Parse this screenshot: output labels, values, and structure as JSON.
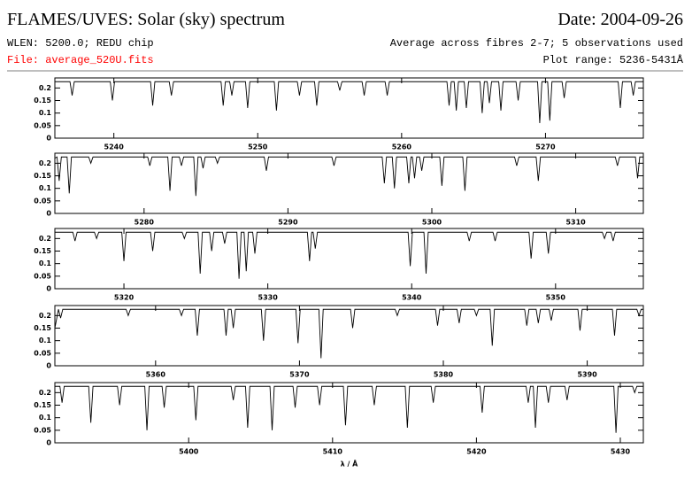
{
  "header": {
    "title": "FLAMES/UVES: Solar (sky) spectrum",
    "date": "Date: 2004-09-26",
    "wlen": "WLEN: 5200.0; REDU chip",
    "average": "Average across fibres 2-7; 5 observations used",
    "file": "File: average_520U.fits",
    "plot_range": "Plot range: 5236-5431Å"
  },
  "chart_data": [
    {
      "type": "line",
      "color": "#000000",
      "xlim": [
        5235.9,
        5276.8
      ],
      "ylim": [
        0,
        0.24
      ],
      "xticks": [
        5240,
        5250,
        5260,
        5270
      ],
      "yticks": [
        0,
        0.05,
        0.1,
        0.15,
        0.2
      ],
      "x": [
        5235.9,
        5236.95,
        5237.1,
        5237.25,
        5239.75,
        5239.9,
        5240.05,
        5242.55,
        5242.7,
        5242.85,
        5243.85,
        5244,
        5244.15,
        5247.45,
        5247.6,
        5247.75,
        5248.05,
        5248.2,
        5248.35,
        5249.15,
        5249.3,
        5249.45,
        5251.15,
        5251.3,
        5251.45,
        5252.75,
        5252.9,
        5253.05,
        5253.95,
        5254.1,
        5254.25,
        5255.55,
        5255.7,
        5255.85,
        5257.25,
        5257.4,
        5257.55,
        5258.85,
        5259,
        5259.15,
        5263.15,
        5263.3,
        5263.45,
        5263.65,
        5263.8,
        5263.95,
        5264.35,
        5264.5,
        5264.65,
        5265.45,
        5265.6,
        5265.75,
        5265.95,
        5266.1,
        5266.25,
        5266.75,
        5266.9,
        5267.05,
        5267.95,
        5268.1,
        5268.25,
        5269.45,
        5269.6,
        5269.75,
        5270.15,
        5270.3,
        5270.45,
        5271.15,
        5271.3,
        5271.45,
        5275.05,
        5275.2,
        5275.35,
        5275.95,
        5276.1,
        5276.25,
        5276.8
      ],
      "values": [
        0.225,
        0.225,
        0.17,
        0.225,
        0.225,
        0.15,
        0.225,
        0.225,
        0.13,
        0.225,
        0.225,
        0.17,
        0.225,
        0.225,
        0.13,
        0.225,
        0.225,
        0.17,
        0.225,
        0.225,
        0.12,
        0.225,
        0.225,
        0.11,
        0.225,
        0.225,
        0.17,
        0.225,
        0.225,
        0.13,
        0.225,
        0.225,
        0.19,
        0.225,
        0.225,
        0.17,
        0.225,
        0.225,
        0.17,
        0.225,
        0.225,
        0.13,
        0.225,
        0.225,
        0.11,
        0.225,
        0.225,
        0.12,
        0.225,
        0.225,
        0.1,
        0.225,
        0.225,
        0.14,
        0.225,
        0.225,
        0.11,
        0.225,
        0.225,
        0.15,
        0.225,
        0.225,
        0.06,
        0.225,
        0.225,
        0.07,
        0.225,
        0.225,
        0.16,
        0.225,
        0.225,
        0.12,
        0.225,
        0.225,
        0.17,
        0.225,
        0.225
      ]
    },
    {
      "type": "line",
      "color": "#000000",
      "xlim": [
        5273.8,
        5314.7
      ],
      "ylim": [
        0,
        0.24
      ],
      "xticks": [
        5280,
        5290,
        5300,
        5310
      ],
      "yticks": [
        0,
        0.05,
        0.1,
        0.15,
        0.2
      ],
      "x": [
        5273.8,
        5273.95,
        5274.1,
        5274.25,
        5274.65,
        5274.8,
        5274.95,
        5276.15,
        5276.3,
        5276.45,
        5280.25,
        5280.4,
        5280.55,
        5281.65,
        5281.8,
        5281.95,
        5282.45,
        5282.6,
        5282.75,
        5283.45,
        5283.6,
        5283.75,
        5283.95,
        5284.1,
        5284.25,
        5284.95,
        5285.1,
        5285.25,
        5288.35,
        5288.5,
        5288.65,
        5293.05,
        5293.2,
        5293.35,
        5296.55,
        5296.7,
        5296.85,
        5297.25,
        5297.4,
        5297.55,
        5298.25,
        5298.4,
        5298.55,
        5298.65,
        5298.8,
        5298.95,
        5299.15,
        5299.3,
        5299.45,
        5300.55,
        5300.7,
        5300.85,
        5302.15,
        5302.3,
        5302.45,
        5305.75,
        5305.9,
        5306.05,
        5307.25,
        5307.4,
        5307.55,
        5312.75,
        5312.9,
        5313.05,
        5314.15,
        5314.3,
        5314.45,
        5314.7
      ],
      "values": [
        0.22,
        0.225,
        0.13,
        0.225,
        0.225,
        0.08,
        0.225,
        0.225,
        0.2,
        0.225,
        0.225,
        0.19,
        0.225,
        0.225,
        0.09,
        0.225,
        0.225,
        0.19,
        0.225,
        0.225,
        0.07,
        0.225,
        0.225,
        0.18,
        0.225,
        0.225,
        0.2,
        0.225,
        0.225,
        0.17,
        0.225,
        0.225,
        0.19,
        0.225,
        0.225,
        0.12,
        0.225,
        0.225,
        0.1,
        0.225,
        0.225,
        0.12,
        0.225,
        0.225,
        0.14,
        0.225,
        0.225,
        0.17,
        0.225,
        0.225,
        0.11,
        0.225,
        0.225,
        0.09,
        0.225,
        0.225,
        0.19,
        0.225,
        0.225,
        0.13,
        0.225,
        0.225,
        0.19,
        0.225,
        0.225,
        0.14,
        0.225,
        0.225
      ]
    },
    {
      "type": "line",
      "color": "#000000",
      "xlim": [
        5315.2,
        5356.1
      ],
      "ylim": [
        0,
        0.24
      ],
      "xticks": [
        5320,
        5330,
        5340,
        5350
      ],
      "yticks": [
        0,
        0.05,
        0.1,
        0.15,
        0.2
      ],
      "x": [
        5315.2,
        5316.45,
        5316.6,
        5316.75,
        5317.95,
        5318.1,
        5318.25,
        5319.85,
        5320,
        5320.15,
        5321.85,
        5322,
        5322.15,
        5324.05,
        5324.2,
        5324.35,
        5325.15,
        5325.3,
        5325.45,
        5325.95,
        5326.1,
        5326.25,
        5326.85,
        5327,
        5327.15,
        5327.85,
        5328,
        5328.15,
        5328.35,
        5328.5,
        5328.65,
        5328.95,
        5329.1,
        5329.25,
        5332.75,
        5332.9,
        5333.05,
        5333.15,
        5333.3,
        5333.45,
        5339.75,
        5339.9,
        5340.05,
        5340.85,
        5341,
        5341.15,
        5343.85,
        5344,
        5344.15,
        5345.65,
        5345.8,
        5345.95,
        5348.15,
        5348.3,
        5348.45,
        5349.35,
        5349.5,
        5349.65,
        5353.25,
        5353.4,
        5353.55,
        5353.85,
        5354,
        5354.15,
        5356.1
      ],
      "values": [
        0.225,
        0.225,
        0.19,
        0.225,
        0.225,
        0.2,
        0.225,
        0.225,
        0.11,
        0.225,
        0.225,
        0.15,
        0.225,
        0.225,
        0.2,
        0.225,
        0.225,
        0.06,
        0.225,
        0.225,
        0.15,
        0.225,
        0.225,
        0.18,
        0.225,
        0.225,
        0.04,
        0.225,
        0.225,
        0.07,
        0.225,
        0.225,
        0.14,
        0.225,
        0.225,
        0.11,
        0.225,
        0.225,
        0.16,
        0.225,
        0.225,
        0.09,
        0.225,
        0.225,
        0.06,
        0.225,
        0.225,
        0.19,
        0.225,
        0.225,
        0.19,
        0.225,
        0.225,
        0.12,
        0.225,
        0.225,
        0.14,
        0.225,
        0.225,
        0.2,
        0.225,
        0.225,
        0.19,
        0.225,
        0.225
      ]
    },
    {
      "type": "line",
      "color": "#000000",
      "xlim": [
        5353,
        5393.9
      ],
      "ylim": [
        0,
        0.24
      ],
      "xticks": [
        5360,
        5370,
        5380,
        5390
      ],
      "yticks": [
        0,
        0.05,
        0.1,
        0.15,
        0.2
      ],
      "x": [
        5353,
        5353.25,
        5353.4,
        5353.55,
        5357.95,
        5358.1,
        5358.25,
        5361.65,
        5361.8,
        5361.95,
        5362.75,
        5362.9,
        5363.05,
        5364.75,
        5364.9,
        5365.05,
        5365.25,
        5365.4,
        5365.55,
        5367.35,
        5367.5,
        5367.65,
        5369.75,
        5369.9,
        5370.05,
        5371.35,
        5371.5,
        5371.65,
        5373.55,
        5373.7,
        5373.85,
        5376.65,
        5376.8,
        5376.95,
        5379.45,
        5379.6,
        5379.75,
        5380.95,
        5381.1,
        5381.25,
        5382.15,
        5382.3,
        5382.45,
        5383.25,
        5383.4,
        5383.55,
        5385.65,
        5385.8,
        5385.95,
        5386.45,
        5386.6,
        5386.75,
        5387.35,
        5387.5,
        5387.65,
        5389.35,
        5389.5,
        5389.65,
        5391.75,
        5391.9,
        5392.05,
        5393.45,
        5393.6,
        5393.75,
        5393.9
      ],
      "values": [
        0.15,
        0.225,
        0.19,
        0.225,
        0.225,
        0.2,
        0.225,
        0.225,
        0.2,
        0.225,
        0.225,
        0.12,
        0.225,
        0.225,
        0.12,
        0.225,
        0.225,
        0.15,
        0.225,
        0.225,
        0.1,
        0.225,
        0.225,
        0.09,
        0.225,
        0.225,
        0.03,
        0.225,
        0.225,
        0.15,
        0.225,
        0.225,
        0.2,
        0.225,
        0.225,
        0.16,
        0.225,
        0.225,
        0.17,
        0.225,
        0.225,
        0.2,
        0.225,
        0.225,
        0.08,
        0.225,
        0.225,
        0.16,
        0.225,
        0.225,
        0.17,
        0.225,
        0.225,
        0.18,
        0.225,
        0.225,
        0.14,
        0.225,
        0.225,
        0.12,
        0.225,
        0.225,
        0.2,
        0.225,
        0.225
      ]
    },
    {
      "type": "line",
      "color": "#000000",
      "xlim": [
        5390.7,
        5431.6
      ],
      "ylim": [
        0,
        0.24
      ],
      "xticks": [
        5400,
        5410,
        5420,
        5430
      ],
      "yticks": [
        0,
        0.05,
        0.1,
        0.15,
        0.2
      ],
      "xlabel": "λ / Å",
      "x": [
        5390.7,
        5391.05,
        5391.2,
        5391.35,
        5393.05,
        5393.2,
        5393.35,
        5395.05,
        5395.2,
        5395.35,
        5396.95,
        5397.1,
        5397.25,
        5398.15,
        5398.3,
        5398.45,
        5400.35,
        5400.5,
        5400.65,
        5402.95,
        5403.1,
        5403.25,
        5403.95,
        5404.1,
        5404.25,
        5405.65,
        5405.8,
        5405.95,
        5407.25,
        5407.4,
        5407.55,
        5408.95,
        5409.1,
        5409.25,
        5410.75,
        5410.9,
        5411.05,
        5412.75,
        5412.9,
        5413.05,
        5415.05,
        5415.2,
        5415.35,
        5416.85,
        5417,
        5417.15,
        5420.25,
        5420.4,
        5420.55,
        5423.45,
        5423.6,
        5423.75,
        5423.95,
        5424.1,
        5424.25,
        5424.85,
        5425,
        5425.15,
        5426.15,
        5426.3,
        5426.45,
        5429.55,
        5429.7,
        5429.85,
        5430.85,
        5431,
        5431.15,
        5431.6
      ],
      "values": [
        0.225,
        0.225,
        0.16,
        0.225,
        0.225,
        0.08,
        0.225,
        0.225,
        0.15,
        0.225,
        0.225,
        0.05,
        0.225,
        0.225,
        0.14,
        0.225,
        0.225,
        0.09,
        0.225,
        0.225,
        0.17,
        0.225,
        0.225,
        0.06,
        0.225,
        0.225,
        0.05,
        0.225,
        0.225,
        0.14,
        0.225,
        0.225,
        0.15,
        0.225,
        0.225,
        0.07,
        0.225,
        0.225,
        0.15,
        0.225,
        0.225,
        0.06,
        0.225,
        0.225,
        0.16,
        0.225,
        0.225,
        0.12,
        0.225,
        0.225,
        0.16,
        0.225,
        0.225,
        0.06,
        0.225,
        0.225,
        0.16,
        0.225,
        0.225,
        0.17,
        0.225,
        0.225,
        0.04,
        0.225,
        0.225,
        0.2,
        0.225,
        0.225
      ]
    }
  ]
}
